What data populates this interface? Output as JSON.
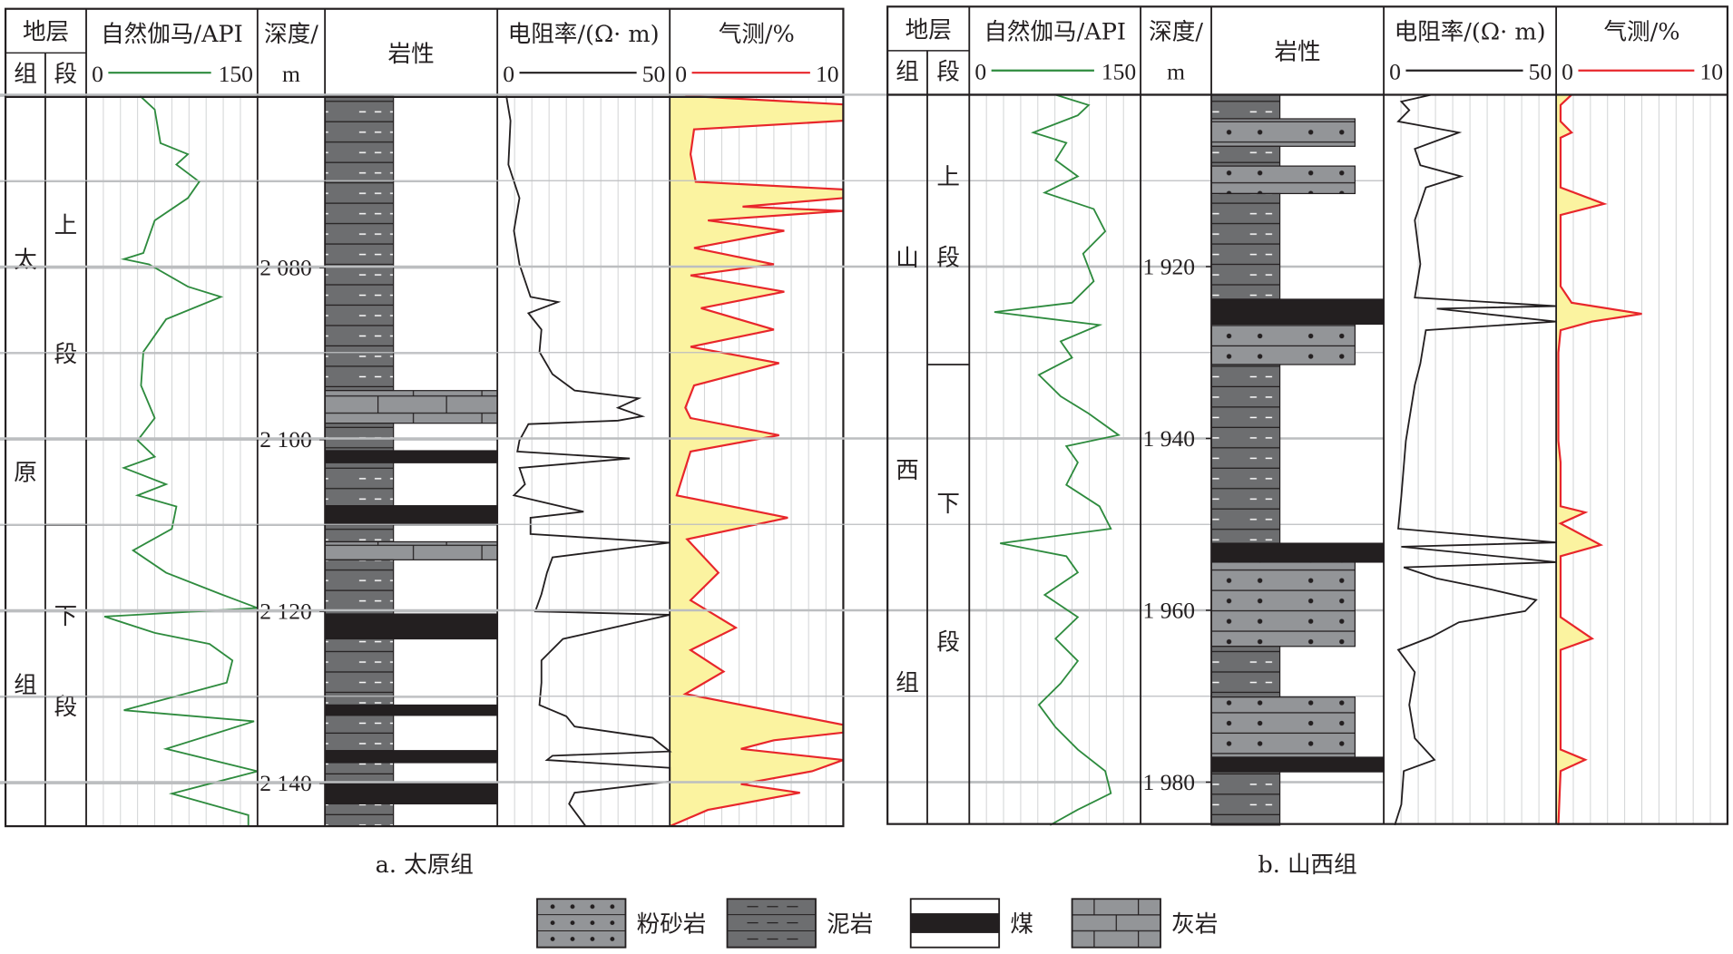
{
  "headers": {
    "strata": "地层",
    "formation": "组",
    "member": "段",
    "gamma": "自然伽马/API",
    "depth_line1": "深度/",
    "depth_line2": "m",
    "lithology": "岩性",
    "resistivity": "电阻率/(Ω· m)",
    "gas": "气测/%",
    "gamma_min": "0",
    "gamma_max": "150",
    "res_min": "0",
    "res_max": "50",
    "gas_min": "0",
    "gas_max": "10"
  },
  "colors": {
    "gamma": "#2e8b3e",
    "resistivity": "#231f20",
    "gas": "#e8262b",
    "gas_fill": "#fbf3a0",
    "mudstone": "#6d6e70",
    "siltstone": "#939598",
    "limestone": "#939598",
    "coal": "#231f20",
    "grid": "#bcbec0"
  },
  "legend": {
    "siltstone": "粉砂岩",
    "mudstone": "泥岩",
    "coal": "煤",
    "limestone": "灰岩"
  },
  "chart_data": [
    {
      "type": "line",
      "caption": "a. 太原组",
      "formation_chars": [
        "太",
        "原",
        "组"
      ],
      "members": [
        {
          "chars": [
            "上",
            "段"
          ],
          "top": 2060,
          "base": 2109.9
        },
        {
          "chars": [
            "下",
            "段"
          ],
          "top": 2109.9,
          "base": 2145
        }
      ],
      "depth_range": [
        2060,
        2145
      ],
      "depth_ticks": [
        {
          "value": 2080,
          "label": "2 080"
        },
        {
          "value": 2100,
          "label": "2 100"
        },
        {
          "value": 2120,
          "label": "2 120"
        },
        {
          "value": 2140,
          "label": "2 140"
        }
      ],
      "lithology": [
        {
          "type": "mudstone",
          "top": 2060,
          "base": 2094.3
        },
        {
          "type": "limestone",
          "top": 2094.3,
          "base": 2098.1
        },
        {
          "type": "mudstone",
          "top": 2098.1,
          "base": 2101.3
        },
        {
          "type": "coal",
          "top": 2101.3,
          "base": 2102.7
        },
        {
          "type": "mudstone",
          "top": 2102.7,
          "base": 2107.7
        },
        {
          "type": "coal",
          "top": 2107.7,
          "base": 2109.9
        },
        {
          "type": "mudstone",
          "top": 2109.9,
          "base": 2111.9
        },
        {
          "type": "limestone",
          "top": 2111.9,
          "base": 2114.0
        },
        {
          "type": "mudstone",
          "top": 2114.0,
          "base": 2120.3
        },
        {
          "type": "coal",
          "top": 2120.3,
          "base": 2123.2
        },
        {
          "type": "mudstone",
          "top": 2123.2,
          "base": 2130.9
        },
        {
          "type": "coal",
          "top": 2130.9,
          "base": 2132.1
        },
        {
          "type": "mudstone",
          "top": 2132.1,
          "base": 2136.2
        },
        {
          "type": "coal",
          "top": 2136.2,
          "base": 2137.6
        },
        {
          "type": "mudstone",
          "top": 2137.6,
          "base": 2140.0
        },
        {
          "type": "coal",
          "top": 2140.0,
          "base": 2142.4
        },
        {
          "type": "mudstone",
          "top": 2142.4,
          "base": 2145
        }
      ],
      "gamma": [
        [
          2060,
          47
        ],
        [
          2061.6,
          60
        ],
        [
          2065.5,
          65
        ],
        [
          2066.8,
          89
        ],
        [
          2068,
          79
        ],
        [
          2070,
          99
        ],
        [
          2071.9,
          89
        ],
        [
          2074.5,
          60
        ],
        [
          2076.4,
          55
        ],
        [
          2078.3,
          50
        ],
        [
          2079,
          33
        ],
        [
          2079.6,
          55
        ],
        [
          2082.2,
          89
        ],
        [
          2083.4,
          118
        ],
        [
          2086,
          70
        ],
        [
          2089.8,
          50
        ],
        [
          2093.7,
          48
        ],
        [
          2097.5,
          60
        ],
        [
          2100.1,
          45
        ],
        [
          2102,
          60
        ],
        [
          2103.3,
          33
        ],
        [
          2105.2,
          70
        ],
        [
          2106.5,
          45
        ],
        [
          2107.8,
          79
        ],
        [
          2110.4,
          75
        ],
        [
          2112.9,
          41
        ],
        [
          2115.5,
          70
        ],
        [
          2118,
          118
        ],
        [
          2119.6,
          150
        ],
        [
          2120.6,
          16
        ],
        [
          2122.5,
          60
        ],
        [
          2123.8,
          108
        ],
        [
          2125.7,
          128
        ],
        [
          2128.3,
          123
        ],
        [
          2131.5,
          33
        ],
        [
          2132.8,
          147
        ],
        [
          2136,
          70
        ],
        [
          2138.6,
          150
        ],
        [
          2141.2,
          75
        ],
        [
          2143.7,
          142
        ],
        [
          2145,
          142
        ]
      ],
      "resistivity": [
        [
          2060,
          2.6
        ],
        [
          2062.9,
          3.8
        ],
        [
          2068,
          3.2
        ],
        [
          2071.9,
          6.4
        ],
        [
          2075.7,
          4.8
        ],
        [
          2079.6,
          6.4
        ],
        [
          2083.4,
          9.6
        ],
        [
          2084,
          17.6
        ],
        [
          2085.3,
          9
        ],
        [
          2087.2,
          12.8
        ],
        [
          2089.8,
          12.2
        ],
        [
          2092.4,
          16
        ],
        [
          2094.3,
          22.4
        ],
        [
          2095.2,
          41
        ],
        [
          2096.3,
          35
        ],
        [
          2097.3,
          42
        ],
        [
          2097.8,
          35
        ],
        [
          2098.2,
          9
        ],
        [
          2100.1,
          6.4
        ],
        [
          2101.4,
          5.8
        ],
        [
          2102.2,
          38.4
        ],
        [
          2103.3,
          6.4
        ],
        [
          2105.2,
          8
        ],
        [
          2106.5,
          4.8
        ],
        [
          2108.4,
          25
        ],
        [
          2109.1,
          9.6
        ],
        [
          2111,
          9.6
        ],
        [
          2112,
          50
        ],
        [
          2113.7,
          16
        ],
        [
          2115.5,
          14.4
        ],
        [
          2118,
          12.8
        ],
        [
          2120,
          11
        ],
        [
          2120.4,
          50
        ],
        [
          2123.2,
          19
        ],
        [
          2125.7,
          12.8
        ],
        [
          2128.3,
          12.8
        ],
        [
          2130.9,
          12.2
        ],
        [
          2132.2,
          20
        ],
        [
          2133.4,
          22.4
        ],
        [
          2134.7,
          45
        ],
        [
          2136.3,
          50
        ],
        [
          2136.8,
          16
        ],
        [
          2137.3,
          14.4
        ],
        [
          2138.2,
          50
        ],
        [
          2139.8,
          50
        ],
        [
          2141.1,
          22.4
        ],
        [
          2142.4,
          20.8
        ],
        [
          2145,
          25.6
        ]
      ],
      "gas": [
        [
          2060,
          0.9
        ],
        [
          2061,
          10
        ],
        [
          2062.9,
          10
        ],
        [
          2063.9,
          1.4
        ],
        [
          2066.8,
          1.2
        ],
        [
          2070,
          1.5
        ],
        [
          2070.9,
          10
        ],
        [
          2071.9,
          10
        ],
        [
          2072.9,
          4.2
        ],
        [
          2073.4,
          10
        ],
        [
          2074.5,
          2.2
        ],
        [
          2075.7,
          6.6
        ],
        [
          2077.7,
          1.4
        ],
        [
          2079.6,
          6
        ],
        [
          2080.9,
          1.2
        ],
        [
          2082.8,
          6.6
        ],
        [
          2084.7,
          1.8
        ],
        [
          2087.2,
          6
        ],
        [
          2089.2,
          1.2
        ],
        [
          2091.1,
          6.3
        ],
        [
          2093.7,
          1.4
        ],
        [
          2096.3,
          0.9
        ],
        [
          2097.5,
          1.2
        ],
        [
          2099.5,
          6.3
        ],
        [
          2101.4,
          1.2
        ],
        [
          2106.5,
          0.4
        ],
        [
          2109.1,
          6.8
        ],
        [
          2111.6,
          1
        ],
        [
          2115.5,
          2.8
        ],
        [
          2118.7,
          1.2
        ],
        [
          2121.9,
          3.8
        ],
        [
          2124.5,
          1.2
        ],
        [
          2127,
          3.1
        ],
        [
          2129.6,
          0.9
        ],
        [
          2133.2,
          10
        ],
        [
          2134.1,
          10
        ],
        [
          2135,
          6
        ],
        [
          2136,
          4.1
        ],
        [
          2137.3,
          10
        ],
        [
          2138.6,
          8.2
        ],
        [
          2140.1,
          4.1
        ],
        [
          2141.1,
          7.5
        ],
        [
          2143.1,
          2.2
        ],
        [
          2145,
          0
        ]
      ]
    },
    {
      "type": "line",
      "caption": "b. 山西组",
      "formation_chars": [
        "山",
        "西",
        "组"
      ],
      "members": [
        {
          "chars": [
            "上",
            "段"
          ],
          "top": 1900,
          "base": 1931.4
        },
        {
          "chars": [
            "下",
            "段"
          ],
          "top": 1931.4,
          "base": 1985
        }
      ],
      "depth_range": [
        1900,
        1985
      ],
      "depth_ticks": [
        {
          "value": 1920,
          "label": "1 920"
        },
        {
          "value": 1940,
          "label": "1 940"
        },
        {
          "value": 1960,
          "label": "1 960"
        },
        {
          "value": 1980,
          "label": "1 980"
        }
      ],
      "lithology": [
        {
          "type": "mudstone",
          "top": 1900,
          "base": 1902.8
        },
        {
          "type": "siltstone",
          "top": 1902.8,
          "base": 1906.0
        },
        {
          "type": "mudstone",
          "top": 1906.0,
          "base": 1908.3
        },
        {
          "type": "siltstone",
          "top": 1908.3,
          "base": 1911.5
        },
        {
          "type": "mudstone",
          "top": 1911.5,
          "base": 1923.8
        },
        {
          "type": "coal",
          "top": 1923.8,
          "base": 1926.7
        },
        {
          "type": "siltstone",
          "top": 1926.7,
          "base": 1931.4
        },
        {
          "type": "mudstone",
          "top": 1931.4,
          "base": 1952.2
        },
        {
          "type": "coal",
          "top": 1952.2,
          "base": 1954.4
        },
        {
          "type": "siltstone",
          "top": 1954.4,
          "base": 1964.2
        },
        {
          "type": "mudstone",
          "top": 1964.2,
          "base": 1970.1
        },
        {
          "type": "siltstone",
          "top": 1970.1,
          "base": 1977.1
        },
        {
          "type": "coal",
          "top": 1977.1,
          "base": 1978.8
        },
        {
          "type": "mudstone",
          "top": 1978.8,
          "base": 1985
        }
      ],
      "gamma": [
        [
          1900,
          75.5
        ],
        [
          1901.2,
          104.5
        ],
        [
          1902.4,
          95
        ],
        [
          1904.4,
          56
        ],
        [
          1905.6,
          85
        ],
        [
          1907.6,
          75.5
        ],
        [
          1909.5,
          95
        ],
        [
          1911.4,
          66
        ],
        [
          1913.3,
          109
        ],
        [
          1915.9,
          119
        ],
        [
          1918.5,
          99.7
        ],
        [
          1921.7,
          109
        ],
        [
          1924.2,
          90
        ],
        [
          1925.3,
          22
        ],
        [
          1926.8,
          114
        ],
        [
          1928.7,
          80
        ],
        [
          1930.6,
          90
        ],
        [
          1932.6,
          61
        ],
        [
          1935.1,
          80
        ],
        [
          1937.1,
          104.5
        ],
        [
          1939.6,
          130.7
        ],
        [
          1940.9,
          85
        ],
        [
          1942.8,
          95
        ],
        [
          1945.4,
          85
        ],
        [
          1947.9,
          114
        ],
        [
          1950.5,
          124
        ],
        [
          1952.2,
          27
        ],
        [
          1953.7,
          85
        ],
        [
          1955.6,
          95
        ],
        [
          1958.2,
          66
        ],
        [
          1960.8,
          95
        ],
        [
          1963.3,
          75.5
        ],
        [
          1965.9,
          95
        ],
        [
          1968.5,
          80
        ],
        [
          1971,
          61
        ],
        [
          1973.6,
          75.5
        ],
        [
          1976.2,
          95
        ],
        [
          1978.7,
          119
        ],
        [
          1981.3,
          124
        ],
        [
          1983.2,
          95
        ],
        [
          1985,
          70.7
        ]
      ],
      "resistivity": [
        [
          1900,
          13.8
        ],
        [
          1900.8,
          5.1
        ],
        [
          1901.8,
          7.4
        ],
        [
          1903.1,
          4.2
        ],
        [
          1904.4,
          21.8
        ],
        [
          1906.3,
          9
        ],
        [
          1908.2,
          10.6
        ],
        [
          1909.5,
          22.4
        ],
        [
          1910.8,
          12.2
        ],
        [
          1914.6,
          9
        ],
        [
          1919.7,
          10.6
        ],
        [
          1923.6,
          9
        ],
        [
          1924.6,
          50
        ],
        [
          1924.9,
          15.4
        ],
        [
          1926.4,
          50
        ],
        [
          1927.4,
          12.2
        ],
        [
          1931.3,
          10.6
        ],
        [
          1933.8,
          9
        ],
        [
          1940.3,
          6.4
        ],
        [
          1946.7,
          5.1
        ],
        [
          1950.5,
          4.2
        ],
        [
          1952.1,
          50
        ],
        [
          1952.6,
          5.1
        ],
        [
          1954.4,
          50
        ],
        [
          1955,
          5.8
        ],
        [
          1956.3,
          15.4
        ],
        [
          1957.6,
          31.4
        ],
        [
          1958.8,
          44.2
        ],
        [
          1960.1,
          41
        ],
        [
          1961.4,
          21.8
        ],
        [
          1963.1,
          13.8
        ],
        [
          1964.6,
          4.2
        ],
        [
          1967.2,
          9
        ],
        [
          1971,
          7.4
        ],
        [
          1974.9,
          9
        ],
        [
          1977.4,
          14.7
        ],
        [
          1978.7,
          5.8
        ],
        [
          1982.6,
          5.1
        ],
        [
          1985,
          3.2
        ]
      ],
      "gas": [
        [
          1900,
          0.9
        ],
        [
          1901.2,
          0.26
        ],
        [
          1903.1,
          0.26
        ],
        [
          1904.4,
          0.9
        ],
        [
          1905,
          0.26
        ],
        [
          1906.9,
          0.26
        ],
        [
          1910.8,
          0.26
        ],
        [
          1912.7,
          2.8
        ],
        [
          1914,
          0.26
        ],
        [
          1922.3,
          0.26
        ],
        [
          1924.2,
          0.9
        ],
        [
          1925.5,
          5
        ],
        [
          1926.4,
          2.1
        ],
        [
          1927.4,
          0.26
        ],
        [
          1930,
          0.13
        ],
        [
          1940.3,
          0.13
        ],
        [
          1942.8,
          0.26
        ],
        [
          1947.9,
          0.26
        ],
        [
          1948.6,
          1.7
        ],
        [
          1949.9,
          0.26
        ],
        [
          1952.4,
          2.6
        ],
        [
          1953.7,
          0.26
        ],
        [
          1960.8,
          0.26
        ],
        [
          1963.3,
          2.1
        ],
        [
          1964.6,
          0.26
        ],
        [
          1976.2,
          0.26
        ],
        [
          1977.4,
          1.7
        ],
        [
          1978.7,
          0.26
        ],
        [
          1985,
          0.13
        ]
      ]
    }
  ]
}
